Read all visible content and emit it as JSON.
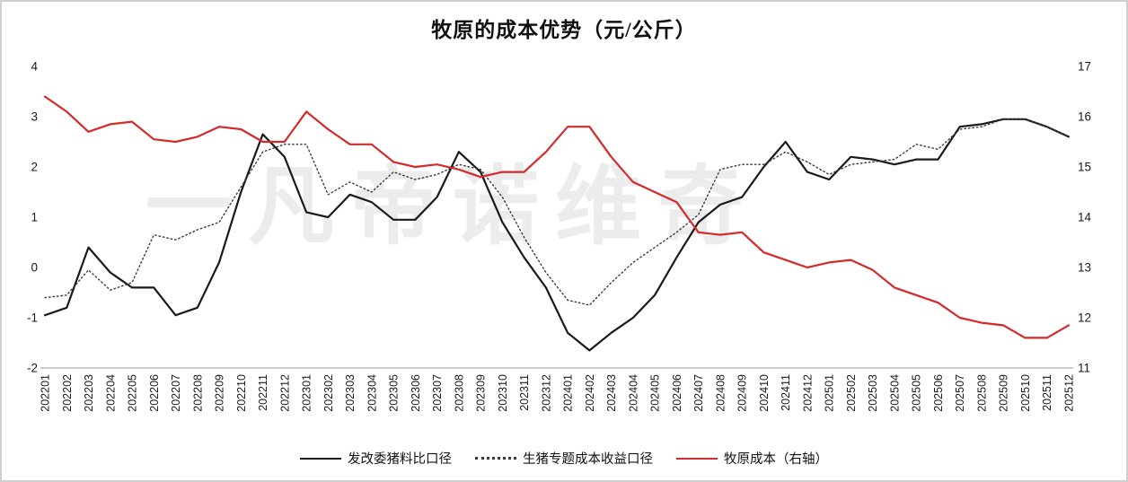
{
  "page": {
    "background": "#ffffff",
    "border_color": "#cfcfcf"
  },
  "watermark": {
    "text": "一凡帝诺维奇"
  },
  "chart_data": {
    "type": "line",
    "title": "牧原的成本优势（元/公斤）",
    "grid": false,
    "legend_position": "bottom",
    "x": [
      "202201",
      "202202",
      "202203",
      "202204",
      "202205",
      "202206",
      "202207",
      "202208",
      "202209",
      "202210",
      "202211",
      "202212",
      "202301",
      "202302",
      "202303",
      "202304",
      "202305",
      "202306",
      "202307",
      "202308",
      "202309",
      "202310",
      "202311",
      "202312",
      "202401",
      "202402",
      "202403",
      "202404",
      "202405",
      "202406",
      "202407",
      "202408",
      "202409",
      "202410",
      "202411",
      "202412",
      "202501",
      "202502",
      "202503",
      "202504",
      "202505",
      "202506",
      "202507",
      "202508",
      "202509",
      "202510",
      "202511",
      "202512"
    ],
    "left_axis": {
      "min": -2,
      "max": 4,
      "ticks": [
        4,
        3,
        2,
        1,
        0,
        -1,
        -2
      ]
    },
    "right_axis": {
      "min": 11,
      "max": 17,
      "ticks": [
        17,
        16,
        15,
        14,
        13,
        12,
        11
      ]
    },
    "series": [
      {
        "name": "发改委猪料比口径",
        "axis": "left",
        "style": "solid",
        "color": "#1a1a1a",
        "values": [
          -0.95,
          -0.8,
          0.4,
          -0.1,
          -0.4,
          -0.4,
          -0.95,
          -0.8,
          0.1,
          1.5,
          2.65,
          2.2,
          1.1,
          1.0,
          1.45,
          1.3,
          0.95,
          0.95,
          1.4,
          2.3,
          1.9,
          0.9,
          0.2,
          -0.4,
          -1.3,
          -1.65,
          -1.3,
          -1.0,
          -0.55,
          0.2,
          0.9,
          1.25,
          1.4,
          2.0,
          2.5,
          1.9,
          1.75,
          2.2,
          2.15,
          2.05,
          2.15,
          2.15,
          2.8,
          2.85,
          2.95,
          2.95,
          2.8,
          2.6
        ]
      },
      {
        "name": "生猪专题成本收益口径",
        "axis": "left",
        "style": "dotted",
        "color": "#3a3a3a",
        "values": [
          -0.6,
          -0.55,
          -0.05,
          -0.45,
          -0.3,
          0.65,
          0.55,
          0.75,
          0.9,
          1.6,
          2.3,
          2.45,
          2.45,
          1.45,
          1.7,
          1.5,
          1.9,
          1.75,
          1.85,
          2.05,
          1.95,
          1.4,
          0.6,
          -0.1,
          -0.65,
          -0.75,
          -0.3,
          0.1,
          0.4,
          0.7,
          1.05,
          1.95,
          2.05,
          2.05,
          2.3,
          2.1,
          1.85,
          2.05,
          2.1,
          2.15,
          2.45,
          2.35,
          2.75,
          2.8,
          2.95,
          2.95,
          2.8,
          2.6
        ]
      },
      {
        "name": "牧原成本（右轴）",
        "axis": "right",
        "style": "solid",
        "color": "#d42a2a",
        "values": [
          16.4,
          16.1,
          15.7,
          15.85,
          15.9,
          15.55,
          15.5,
          15.6,
          15.8,
          15.75,
          15.5,
          15.5,
          16.1,
          15.75,
          15.45,
          15.45,
          15.1,
          15.0,
          15.05,
          14.95,
          14.8,
          14.9,
          14.9,
          15.3,
          15.8,
          15.8,
          15.2,
          14.7,
          14.5,
          14.3,
          13.7,
          13.65,
          13.7,
          13.3,
          13.15,
          13.0,
          13.1,
          13.15,
          12.95,
          12.6,
          12.45,
          12.3,
          12.0,
          11.9,
          11.85,
          11.6,
          11.6,
          11.85
        ]
      }
    ]
  }
}
